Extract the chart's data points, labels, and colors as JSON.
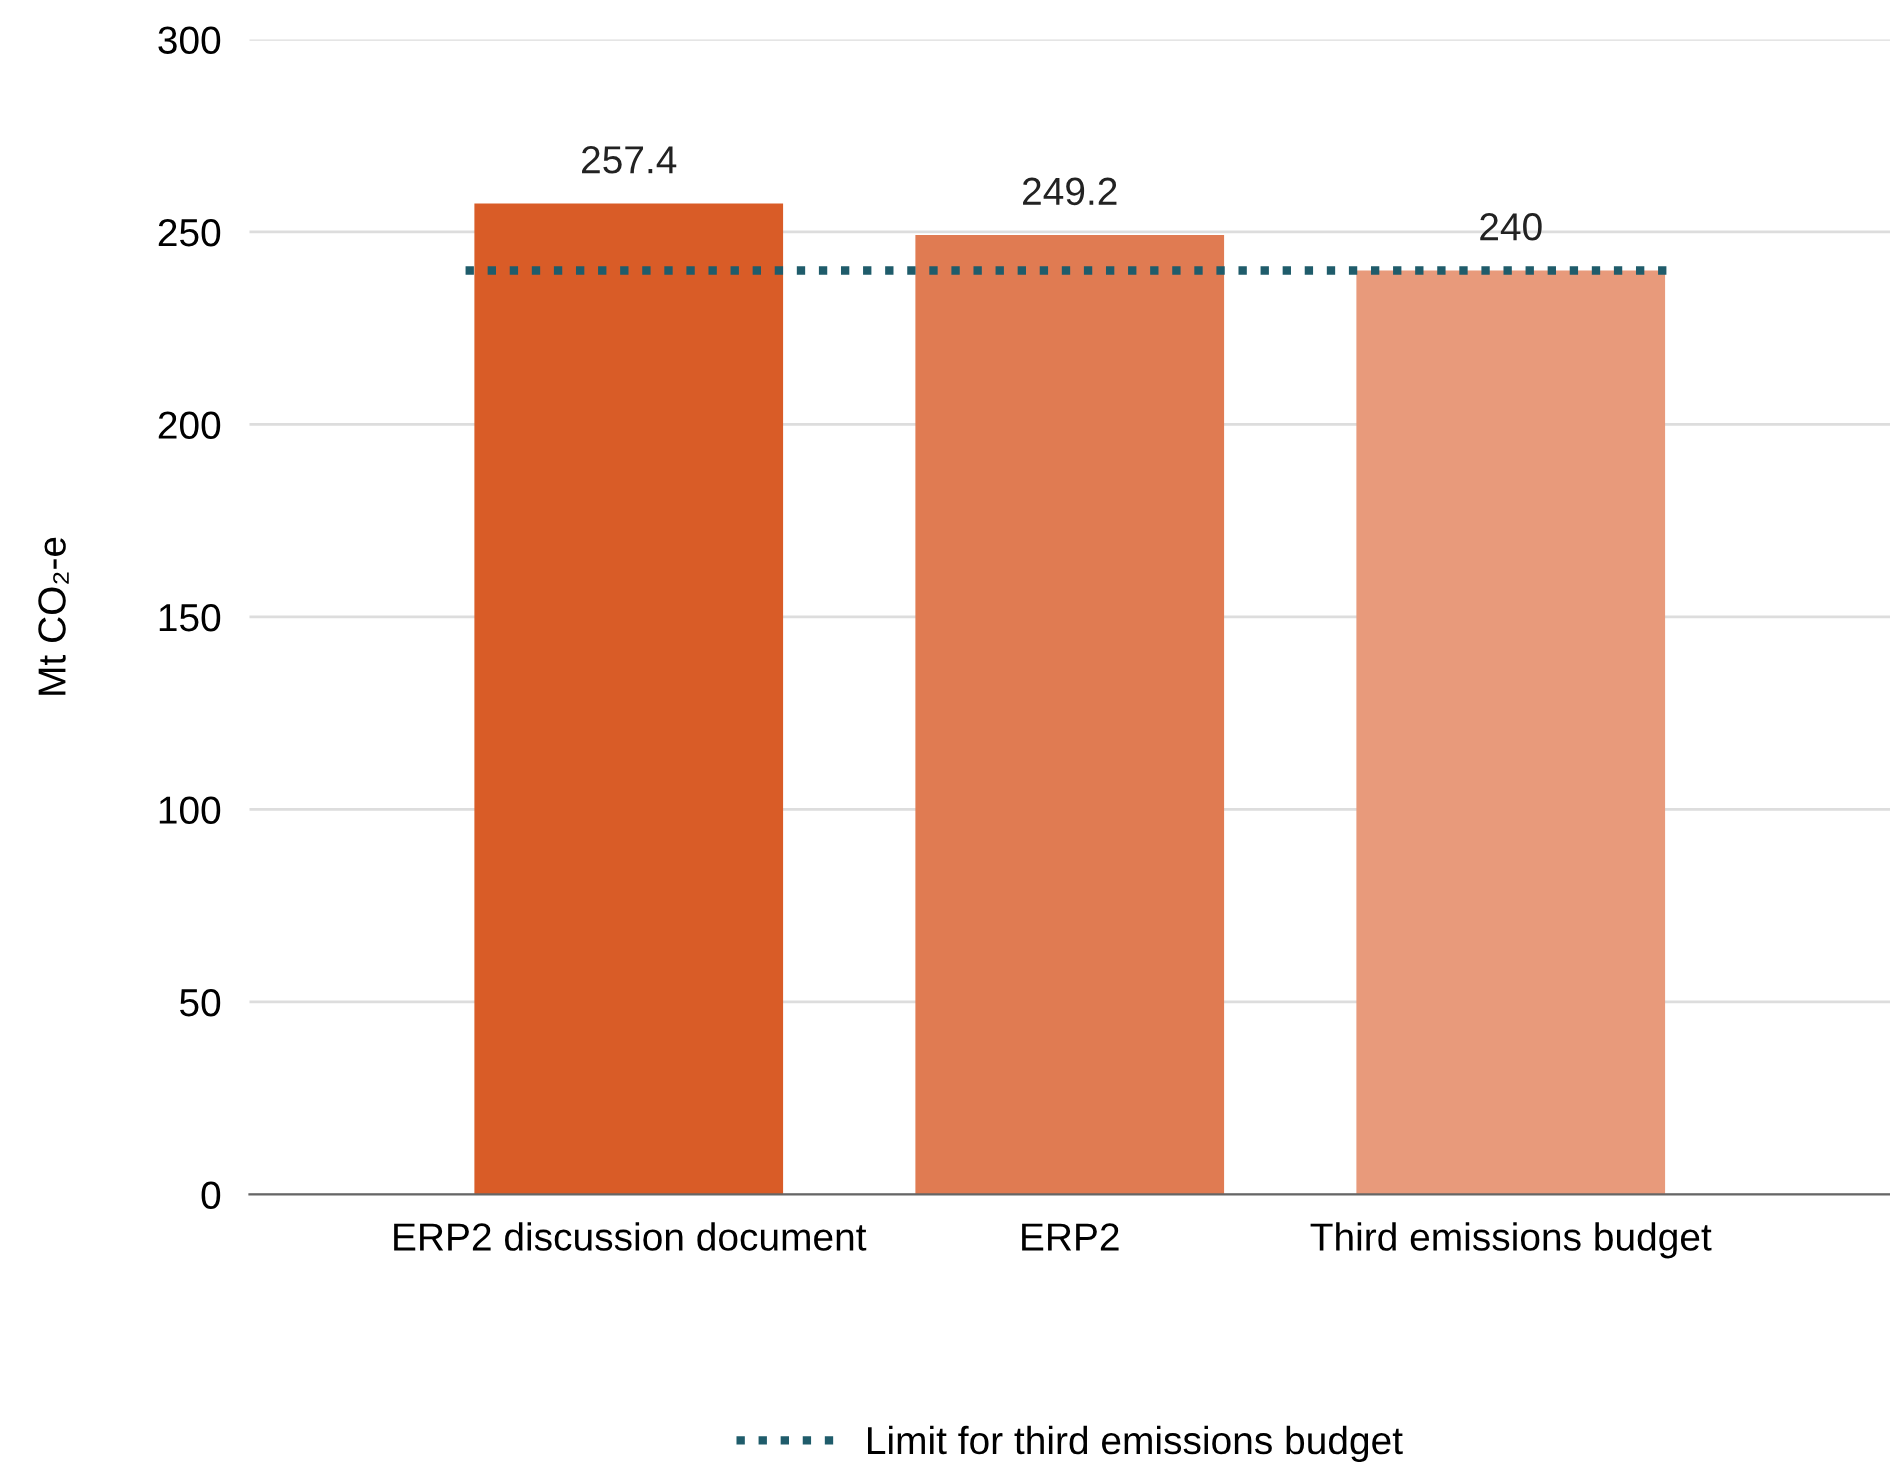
{
  "chart_data": {
    "type": "bar",
    "categories": [
      "ERP2 discussion document",
      "ERP2",
      "Third emissions budget"
    ],
    "values": [
      257.4,
      249.2,
      240
    ],
    "colors": [
      "#d95c27",
      "#e07b52",
      "#e89a7b"
    ],
    "ylabel": "Mt CO₂-e",
    "ylim": [
      0,
      300
    ],
    "yticks": [
      0,
      50,
      100,
      150,
      200,
      250,
      300
    ],
    "grid": "y",
    "data_labels": true,
    "legend": "bottom",
    "ref_lines": [
      {
        "axis": "y",
        "value": 240,
        "label": "Limit for third emissions budget",
        "color": "#1f5c6b",
        "line_style": "dotted"
      }
    ]
  }
}
